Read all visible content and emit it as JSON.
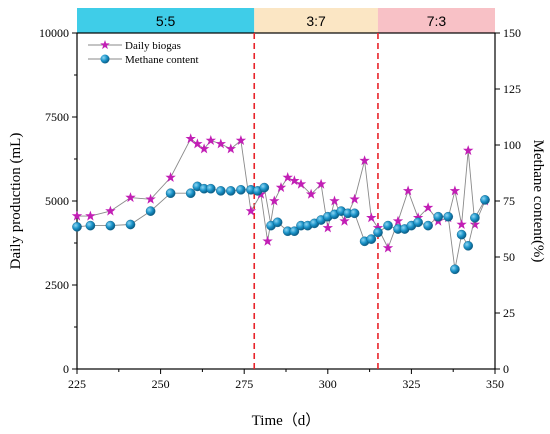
{
  "chart_data": {
    "type": "line",
    "xlabel": "Time（d）",
    "ylabel_left": "Daily production (mL)",
    "ylabel_right": "Methane content(%)",
    "xlim": [
      225,
      350
    ],
    "ylim_left": [
      0,
      10000
    ],
    "ylim_right": [
      0,
      150
    ],
    "xticks": [
      225,
      250,
      275,
      300,
      325,
      350
    ],
    "yticks_left": [
      0,
      2500,
      5000,
      7500,
      10000
    ],
    "yticks_right": [
      0,
      25,
      50,
      75,
      100,
      125,
      150
    ],
    "phases": [
      {
        "label": "5:5",
        "start": 225,
        "end": 278,
        "color": "#3fcde8"
      },
      {
        "label": "3:7",
        "start": 278,
        "end": 315,
        "color": "#fbe6c4"
      },
      {
        "label": "7:3",
        "start": 315,
        "end": 350,
        "color": "#f8c1c6"
      }
    ],
    "phase_dividers": [
      278,
      315
    ],
    "series": [
      {
        "name": "Daily biogas",
        "axis": "left",
        "color": "#c21fb5",
        "marker": "star",
        "x": [
          225,
          229,
          235,
          241,
          247,
          253,
          259,
          261,
          263,
          265,
          268,
          271,
          274,
          277,
          280,
          282,
          284,
          286,
          288,
          290,
          292,
          295,
          298,
          300,
          302,
          305,
          308,
          311,
          313,
          315,
          318,
          321,
          324,
          327,
          330,
          333,
          336,
          338,
          340,
          342,
          344,
          347
        ],
        "values": [
          4550,
          4550,
          4700,
          5100,
          5050,
          5700,
          6850,
          6700,
          6550,
          6800,
          6700,
          6550,
          6800,
          4700,
          5200,
          3800,
          5000,
          5400,
          5700,
          5600,
          5500,
          5200,
          5500,
          4200,
          5000,
          4400,
          5050,
          6200,
          4500,
          4200,
          3600,
          4400,
          5300,
          4500,
          4800,
          4400,
          4500,
          5300,
          4300,
          6500,
          4300,
          5000
        ]
      },
      {
        "name": "Methane content",
        "axis": "right",
        "color": "#1a93c9",
        "marker": "circle",
        "x": [
          225,
          229,
          235,
          241,
          247,
          253,
          259,
          261,
          263,
          265,
          268,
          271,
          274,
          277,
          279,
          281,
          283,
          285,
          288,
          290,
          292,
          294,
          296,
          298,
          300,
          302,
          304,
          306,
          308,
          311,
          313,
          315,
          318,
          321,
          323,
          325,
          327,
          330,
          333,
          336,
          338,
          340,
          342,
          344,
          347
        ],
        "values": [
          63.5,
          64,
          64,
          64.5,
          70.5,
          78.5,
          78.5,
          81.5,
          80.5,
          80.5,
          79.5,
          79.5,
          80,
          80,
          79.5,
          81,
          64,
          65.5,
          61.5,
          61.5,
          64,
          64,
          65,
          66.5,
          68,
          69,
          70.5,
          69.5,
          69.5,
          57,
          58,
          61,
          64,
          62.5,
          62.5,
          64,
          65.5,
          64,
          68,
          68,
          44.5,
          60,
          55,
          67.5,
          75.5
        ]
      }
    ]
  }
}
